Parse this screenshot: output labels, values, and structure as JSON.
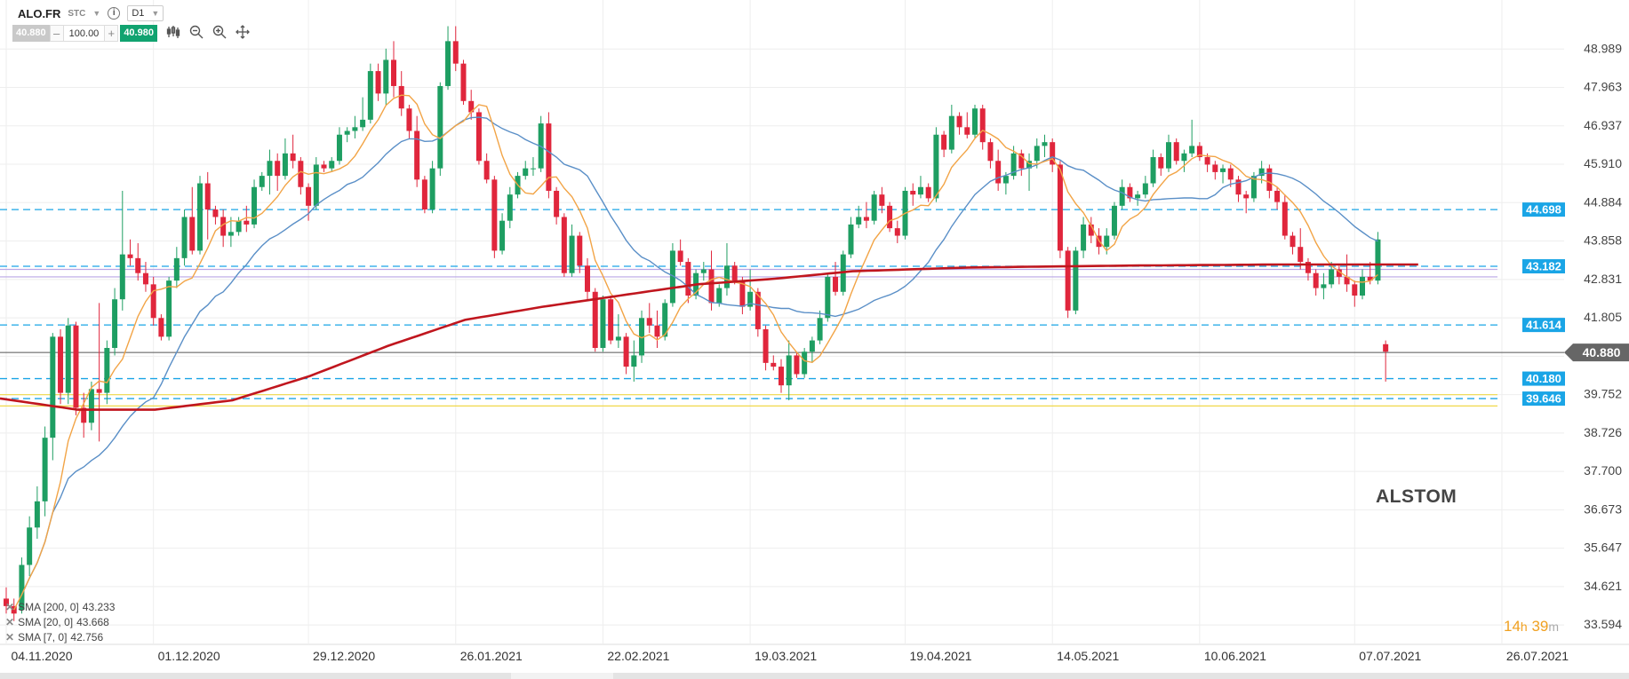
{
  "header": {
    "symbol": "ALO.FR",
    "exchange": "STC",
    "info_label": "i",
    "timeframe": "D1",
    "bid": "40.880",
    "quantity": "100.00",
    "ask": "40.980",
    "minus_label": "–",
    "plus_label": "+"
  },
  "watermark": "ALSTOM",
  "timer": {
    "hours": "14",
    "h_unit": "h",
    "minutes": "39",
    "m_unit": "m"
  },
  "colors": {
    "bull": "#1e9e62",
    "bear": "#e0263c",
    "sma200": "#c0161e",
    "sma20": "#5a8fc7",
    "sma7": "#f2a446",
    "hline_blue": "#1aa5e6",
    "hline_yellow": "#f0d84a",
    "hline_violet": "#b9a6e6",
    "hline_current": "#555555",
    "current_tag": "#666666",
    "level_tag": "#1aa5e6"
  },
  "chart_data": {
    "type": "candlestick",
    "y_range": [
      33.1,
      50.3
    ],
    "y_ticks": [
      "48.989",
      "47.963",
      "46.937",
      "45.910",
      "44.884",
      "43.858",
      "42.831",
      "41.805",
      "40.779",
      "39.752",
      "38.726",
      "37.700",
      "36.673",
      "35.647",
      "34.621",
      "33.594"
    ],
    "x_tick_labels": [
      "04.11.2020",
      "01.12.2020",
      "29.12.2020",
      "26.01.2021",
      "22.02.2021",
      "19.03.2021",
      "19.04.2021",
      "14.05.2021",
      "10.06.2021",
      "07.07.2021",
      "26.07.2021"
    ],
    "x_tick_bars": [
      0,
      19,
      39,
      58,
      77,
      96,
      116,
      135,
      154,
      174,
      193
    ],
    "current_price": "40.880",
    "horizontal_levels": [
      {
        "value": "44.698",
        "style": "dashed",
        "color_key": "hline_blue",
        "labeled": true
      },
      {
        "value": "43.182",
        "style": "dashed",
        "color_key": "hline_blue",
        "labeled": true
      },
      {
        "value": "43.10",
        "style": "solid",
        "color_key": "hline_violet",
        "labeled": false
      },
      {
        "value": "42.90",
        "style": "solid",
        "color_key": "hline_violet",
        "labeled": false
      },
      {
        "value": "41.614",
        "style": "dashed",
        "color_key": "hline_blue",
        "labeled": true
      },
      {
        "value": "40.180",
        "style": "dashed",
        "color_key": "hline_blue",
        "labeled": true
      },
      {
        "value": "39.75",
        "style": "solid",
        "color_key": "hline_yellow",
        "labeled": false
      },
      {
        "value": "39.646",
        "style": "dashed",
        "color_key": "hline_blue",
        "labeled": true
      },
      {
        "value": "39.45",
        "style": "solid",
        "color_key": "hline_yellow",
        "labeled": false
      }
    ],
    "indicators": [
      {
        "label": "SMA [200, 0]",
        "value": "43.233",
        "color_key": "sma200"
      },
      {
        "label": "SMA [20, 0]",
        "value": "43.668",
        "color_key": "sma20"
      },
      {
        "label": "SMA [7, 0]",
        "value": "42.756",
        "color_key": "sma7"
      }
    ],
    "candles": [
      [
        34.3,
        34.6,
        33.9,
        34.1
      ],
      [
        34.1,
        34.3,
        33.7,
        33.9
      ],
      [
        34.0,
        35.4,
        33.9,
        35.2
      ],
      [
        35.2,
        36.5,
        34.9,
        36.2
      ],
      [
        36.2,
        37.3,
        35.9,
        36.9
      ],
      [
        36.9,
        38.9,
        36.5,
        38.6
      ],
      [
        38.6,
        41.4,
        38.0,
        41.3
      ],
      [
        41.3,
        41.5,
        39.5,
        39.8
      ],
      [
        39.8,
        41.8,
        39.5,
        41.6
      ],
      [
        41.6,
        41.7,
        39.2,
        39.4
      ],
      [
        39.4,
        39.8,
        38.6,
        39.0
      ],
      [
        39.0,
        40.1,
        38.8,
        39.9
      ],
      [
        39.9,
        42.2,
        38.5,
        39.8
      ],
      [
        39.8,
        41.2,
        39.5,
        41.0
      ],
      [
        41.0,
        42.6,
        40.8,
        42.3
      ],
      [
        42.3,
        45.2,
        42.0,
        43.5
      ],
      [
        43.5,
        43.9,
        43.2,
        43.4
      ],
      [
        43.4,
        43.8,
        42.8,
        43.0
      ],
      [
        43.0,
        43.3,
        42.5,
        42.7
      ],
      [
        42.7,
        42.9,
        41.6,
        41.8
      ],
      [
        41.8,
        41.9,
        41.2,
        41.3
      ],
      [
        41.3,
        42.9,
        41.2,
        42.8
      ],
      [
        42.8,
        43.7,
        42.6,
        43.4
      ],
      [
        43.4,
        44.7,
        43.2,
        44.5
      ],
      [
        44.5,
        45.3,
        43.5,
        43.6
      ],
      [
        43.6,
        45.6,
        43.5,
        45.4
      ],
      [
        45.4,
        45.7,
        43.9,
        44.7
      ],
      [
        44.7,
        44.8,
        44.3,
        44.5
      ],
      [
        44.5,
        44.7,
        43.7,
        44.0
      ],
      [
        44.0,
        44.5,
        43.7,
        44.1
      ],
      [
        44.1,
        44.5,
        44.0,
        44.4
      ],
      [
        44.4,
        44.8,
        44.1,
        44.3
      ],
      [
        44.3,
        45.5,
        44.2,
        45.3
      ],
      [
        45.3,
        45.7,
        45.2,
        45.6
      ],
      [
        45.6,
        46.3,
        45.1,
        46.0
      ],
      [
        46.0,
        46.2,
        45.2,
        45.6
      ],
      [
        45.6,
        46.6,
        45.5,
        46.2
      ],
      [
        46.2,
        46.7,
        45.8,
        46.0
      ],
      [
        46.0,
        46.1,
        45.1,
        45.3
      ],
      [
        45.3,
        45.4,
        44.4,
        44.8
      ],
      [
        44.8,
        46.1,
        44.7,
        45.9
      ],
      [
        45.9,
        46.0,
        45.7,
        45.8
      ],
      [
        45.8,
        46.1,
        45.7,
        46.0
      ],
      [
        46.0,
        46.9,
        45.9,
        46.7
      ],
      [
        46.7,
        46.9,
        46.5,
        46.8
      ],
      [
        46.8,
        47.2,
        46.6,
        46.9
      ],
      [
        46.9,
        47.7,
        46.8,
        47.1
      ],
      [
        47.1,
        48.6,
        47.0,
        48.4
      ],
      [
        48.4,
        48.6,
        47.6,
        47.8
      ],
      [
        47.8,
        49.0,
        47.5,
        48.7
      ],
      [
        48.7,
        49.2,
        47.7,
        48.0
      ],
      [
        48.0,
        48.4,
        47.2,
        47.4
      ],
      [
        47.4,
        47.5,
        46.6,
        46.8
      ],
      [
        46.8,
        47.2,
        45.3,
        45.5
      ],
      [
        45.5,
        45.6,
        44.6,
        44.7
      ],
      [
        44.7,
        46.0,
        44.6,
        45.8
      ],
      [
        45.8,
        48.1,
        45.6,
        48.0
      ],
      [
        48.0,
        49.6,
        47.9,
        49.2
      ],
      [
        49.2,
        49.6,
        48.4,
        48.6
      ],
      [
        48.6,
        48.7,
        47.5,
        47.6
      ],
      [
        47.6,
        47.9,
        47.1,
        47.3
      ],
      [
        47.3,
        47.4,
        45.9,
        46.0
      ],
      [
        46.0,
        46.2,
        45.4,
        45.5
      ],
      [
        45.5,
        45.6,
        43.4,
        43.6
      ],
      [
        43.6,
        44.6,
        43.5,
        44.4
      ],
      [
        44.4,
        45.3,
        44.2,
        45.1
      ],
      [
        45.1,
        45.7,
        45.0,
        45.6
      ],
      [
        45.6,
        46.0,
        45.5,
        45.8
      ],
      [
        45.8,
        46.1,
        45.6,
        45.8
      ],
      [
        45.8,
        47.2,
        45.7,
        47.0
      ],
      [
        47.0,
        47.3,
        45.0,
        45.2
      ],
      [
        45.2,
        45.3,
        44.3,
        44.5
      ],
      [
        44.5,
        44.6,
        42.9,
        43.0
      ],
      [
        43.0,
        44.3,
        42.9,
        44.0
      ],
      [
        44.0,
        44.1,
        43.0,
        43.2
      ],
      [
        43.2,
        43.4,
        42.3,
        42.5
      ],
      [
        42.5,
        42.6,
        40.9,
        41.0
      ],
      [
        41.0,
        42.4,
        40.9,
        42.3
      ],
      [
        42.3,
        42.4,
        41.1,
        41.2
      ],
      [
        41.2,
        41.9,
        41.0,
        41.3
      ],
      [
        41.3,
        41.4,
        40.3,
        40.5
      ],
      [
        40.5,
        41.2,
        40.1,
        40.8
      ],
      [
        40.8,
        42.0,
        40.6,
        41.8
      ],
      [
        41.8,
        42.2,
        41.4,
        41.6
      ],
      [
        41.6,
        42.0,
        41.0,
        41.3
      ],
      [
        41.3,
        42.3,
        41.2,
        42.2
      ],
      [
        42.2,
        43.8,
        42.1,
        43.6
      ],
      [
        43.6,
        43.9,
        43.2,
        43.3
      ],
      [
        43.3,
        43.4,
        42.2,
        42.4
      ],
      [
        42.4,
        43.1,
        42.3,
        43.0
      ],
      [
        43.0,
        43.3,
        42.8,
        43.1
      ],
      [
        43.1,
        43.6,
        42.0,
        42.2
      ],
      [
        42.2,
        42.7,
        42.1,
        42.6
      ],
      [
        42.6,
        43.8,
        42.4,
        43.2
      ],
      [
        43.2,
        43.3,
        42.7,
        42.8
      ],
      [
        42.8,
        42.9,
        41.9,
        42.1
      ],
      [
        42.1,
        43.1,
        42.0,
        42.5
      ],
      [
        42.5,
        42.6,
        41.3,
        41.5
      ],
      [
        41.5,
        41.6,
        40.4,
        40.6
      ],
      [
        40.6,
        40.8,
        40.4,
        40.5
      ],
      [
        40.5,
        40.7,
        39.8,
        40.0
      ],
      [
        40.0,
        41.2,
        39.6,
        40.8
      ],
      [
        40.8,
        40.9,
        40.2,
        40.3
      ],
      [
        40.3,
        41.0,
        40.2,
        40.9
      ],
      [
        40.9,
        41.3,
        40.6,
        41.2
      ],
      [
        41.2,
        42.0,
        41.1,
        41.8
      ],
      [
        41.8,
        43.0,
        41.7,
        42.9
      ],
      [
        42.9,
        43.3,
        42.4,
        42.5
      ],
      [
        42.5,
        43.6,
        42.4,
        43.5
      ],
      [
        43.5,
        44.5,
        43.4,
        44.3
      ],
      [
        44.3,
        44.8,
        44.2,
        44.5
      ],
      [
        44.5,
        44.9,
        44.2,
        44.4
      ],
      [
        44.4,
        45.2,
        44.3,
        45.1
      ],
      [
        45.1,
        45.3,
        44.6,
        44.8
      ],
      [
        44.8,
        44.9,
        44.1,
        44.2
      ],
      [
        44.2,
        44.4,
        43.8,
        44.0
      ],
      [
        44.0,
        45.3,
        43.9,
        45.2
      ],
      [
        45.2,
        45.4,
        44.8,
        45.1
      ],
      [
        45.1,
        45.6,
        45.0,
        45.3
      ],
      [
        45.3,
        45.4,
        44.9,
        45.0
      ],
      [
        45.0,
        46.9,
        44.9,
        46.7
      ],
      [
        46.7,
        46.8,
        46.1,
        46.3
      ],
      [
        46.3,
        47.5,
        46.2,
        47.2
      ],
      [
        47.2,
        47.3,
        46.7,
        46.9
      ],
      [
        46.9,
        47.3,
        46.6,
        46.7
      ],
      [
        46.7,
        47.5,
        46.6,
        47.4
      ],
      [
        47.4,
        47.5,
        46.3,
        46.5
      ],
      [
        46.5,
        46.6,
        45.8,
        46.0
      ],
      [
        46.0,
        46.3,
        45.2,
        45.4
      ],
      [
        45.4,
        45.7,
        45.1,
        45.6
      ],
      [
        45.6,
        46.4,
        45.5,
        46.2
      ],
      [
        46.2,
        46.3,
        45.6,
        45.8
      ],
      [
        45.8,
        46.2,
        45.2,
        46.0
      ],
      [
        46.0,
        46.6,
        45.8,
        46.4
      ],
      [
        46.4,
        46.7,
        46.1,
        46.5
      ],
      [
        46.5,
        46.6,
        45.7,
        45.9
      ],
      [
        45.9,
        46.0,
        43.4,
        43.6
      ],
      [
        43.6,
        43.7,
        41.8,
        42.0
      ],
      [
        42.0,
        43.7,
        41.9,
        43.6
      ],
      [
        43.6,
        44.5,
        43.4,
        44.3
      ],
      [
        44.3,
        44.5,
        43.8,
        44.0
      ],
      [
        44.0,
        44.2,
        43.5,
        43.7
      ],
      [
        43.7,
        44.2,
        43.5,
        44.0
      ],
      [
        44.0,
        44.9,
        43.9,
        44.8
      ],
      [
        44.8,
        45.5,
        44.7,
        45.3
      ],
      [
        45.3,
        45.4,
        44.9,
        45.0
      ],
      [
        45.0,
        45.2,
        44.8,
        45.1
      ],
      [
        45.1,
        45.6,
        45.0,
        45.4
      ],
      [
        45.4,
        46.3,
        45.3,
        46.1
      ],
      [
        46.1,
        46.2,
        45.6,
        45.8
      ],
      [
        45.8,
        46.7,
        45.7,
        46.5
      ],
      [
        46.5,
        46.6,
        45.9,
        46.0
      ],
      [
        46.0,
        46.3,
        45.7,
        46.2
      ],
      [
        46.2,
        47.1,
        46.1,
        46.4
      ],
      [
        46.4,
        46.5,
        46.0,
        46.1
      ],
      [
        46.1,
        46.2,
        45.7,
        45.9
      ],
      [
        45.9,
        46.0,
        45.5,
        45.7
      ],
      [
        45.7,
        45.9,
        45.4,
        45.8
      ],
      [
        45.8,
        45.9,
        45.3,
        45.5
      ],
      [
        45.5,
        45.6,
        44.9,
        45.1
      ],
      [
        45.1,
        45.2,
        44.6,
        45.0
      ],
      [
        45.0,
        45.7,
        44.9,
        45.6
      ],
      [
        45.6,
        46.0,
        45.4,
        45.8
      ],
      [
        45.8,
        45.9,
        45.0,
        45.2
      ],
      [
        45.2,
        45.3,
        44.7,
        44.9
      ],
      [
        44.9,
        45.1,
        43.9,
        44.0
      ],
      [
        44.0,
        44.1,
        43.5,
        43.7
      ],
      [
        43.7,
        44.2,
        43.1,
        43.3
      ],
      [
        43.3,
        43.4,
        42.8,
        43.0
      ],
      [
        43.0,
        43.1,
        42.4,
        42.6
      ],
      [
        42.6,
        43.0,
        42.3,
        42.7
      ],
      [
        42.7,
        43.3,
        42.6,
        43.1
      ],
      [
        43.1,
        43.2,
        42.7,
        42.9
      ],
      [
        42.9,
        43.5,
        42.5,
        42.7
      ],
      [
        42.7,
        42.8,
        42.1,
        42.4
      ],
      [
        42.4,
        43.1,
        42.3,
        42.9
      ],
      [
        42.9,
        43.3,
        42.7,
        42.8
      ],
      [
        42.8,
        44.1,
        42.7,
        43.9
      ],
      [
        41.1,
        41.2,
        40.1,
        40.9
      ]
    ]
  }
}
